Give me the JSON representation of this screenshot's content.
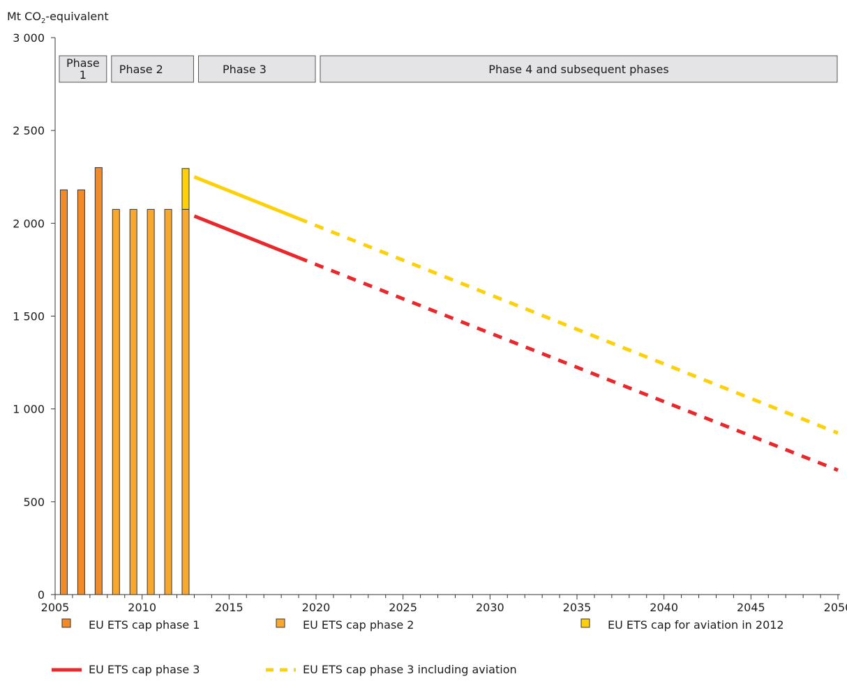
{
  "chart_data": {
    "type": "bar",
    "ylabel": {
      "prefix": "Mt CO",
      "sub": "2",
      "suffix": "-equivalent"
    },
    "ylim": [
      0,
      3000
    ],
    "xlim": [
      2005,
      2050
    ],
    "y_ticks": [
      {
        "value": 0,
        "label": "0"
      },
      {
        "value": 500,
        "label": "500"
      },
      {
        "value": 1000,
        "label": "1 000"
      },
      {
        "value": 1500,
        "label": "1 500"
      },
      {
        "value": 2000,
        "label": "2 000"
      },
      {
        "value": 2500,
        "label": "2 500"
      },
      {
        "value": 3000,
        "label": "3 000"
      }
    ],
    "x_ticks": [
      2005,
      2010,
      2015,
      2020,
      2025,
      2030,
      2035,
      2040,
      2045,
      2050
    ],
    "phases": [
      {
        "lines": [
          "Phase",
          "1"
        ],
        "from": 2005,
        "to": 2008
      },
      {
        "lines": [
          "Phase 2"
        ],
        "from": 2008,
        "to": 2013
      },
      {
        "lines": [
          "Phase 3"
        ],
        "from": 2013,
        "to": 2020
      },
      {
        "lines": [
          "Phase 4 and subsequent phases"
        ],
        "from": 2020,
        "to": 2050
      }
    ],
    "series": [
      {
        "name": "EU ETS cap phase 1",
        "kind": "bar",
        "color": "#f28a28",
        "points": [
          {
            "x": 2005,
            "y": 2180
          },
          {
            "x": 2006,
            "y": 2180
          },
          {
            "x": 2007,
            "y": 2300
          }
        ]
      },
      {
        "name": "EU ETS cap phase 2",
        "kind": "bar",
        "color": "#f9a82f",
        "points": [
          {
            "x": 2008,
            "y": 2075
          },
          {
            "x": 2009,
            "y": 2075
          },
          {
            "x": 2010,
            "y": 2075
          },
          {
            "x": 2011,
            "y": 2075
          },
          {
            "x": 2012,
            "y": 2075
          }
        ]
      },
      {
        "name": "EU ETS cap for aviation in 2012",
        "kind": "bar-stack",
        "color": "#fdd008",
        "points": [
          {
            "x": 2012,
            "base": 2075,
            "y": 220
          }
        ]
      },
      {
        "name": "EU ETS cap phase 3",
        "kind": "line",
        "color": "#e8282b",
        "solid": [
          {
            "x": 2013,
            "y": 2039
          },
          {
            "x": 2019,
            "y": 1815
          }
        ],
        "dashed": [
          {
            "x": 2019,
            "y": 1815
          },
          {
            "x": 2050,
            "y": 670
          }
        ]
      },
      {
        "name": "EU ETS cap phase 3 including aviation",
        "kind": "line",
        "color": "#fdd008",
        "solid": [
          {
            "x": 2013,
            "y": 2250
          },
          {
            "x": 2019,
            "y": 2025
          }
        ],
        "dashed": [
          {
            "x": 2019,
            "y": 2025
          },
          {
            "x": 2050,
            "y": 870
          }
        ]
      }
    ],
    "legend": [
      {
        "label": "EU ETS cap phase 1",
        "kind": "box",
        "color": "#f28a28"
      },
      {
        "label": "EU ETS cap phase 2",
        "kind": "box",
        "color": "#f9a82f"
      },
      {
        "label": "EU ETS cap for aviation in 2012",
        "kind": "box",
        "color": "#fdd008"
      },
      {
        "label": "EU ETS cap phase 3",
        "kind": "line",
        "color": "#e8282b"
      },
      {
        "label": "EU ETS cap phase 3 including aviation",
        "kind": "dashed",
        "color": "#fdd008"
      }
    ]
  }
}
